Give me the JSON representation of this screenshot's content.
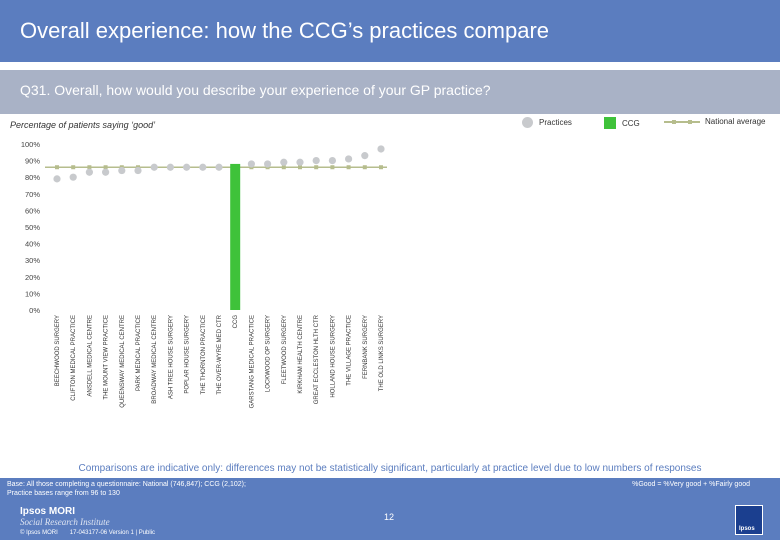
{
  "header": {
    "title": "Overall experience: how the CCG’s practices compare"
  },
  "question": {
    "text": "Q31. Overall, how would you describe your experience of your GP practice?"
  },
  "chart_subtitle": "Percentage of patients saying ‘good’",
  "legend": {
    "practices": "Practices",
    "ccg": "CCG",
    "national": "National average"
  },
  "colors": {
    "header": "#5b7dbf",
    "practice_dot": "#c8cacd",
    "ccg_bar": "#3fc23a",
    "national_line": "#b6bd8d"
  },
  "chart_data": {
    "type": "scatter",
    "title": "",
    "ylabel": "Percentage of patients saying ‘good’",
    "ylim": [
      0,
      100
    ],
    "yticks": [
      "0%",
      "10%",
      "20%",
      "30%",
      "40%",
      "50%",
      "60%",
      "70%",
      "80%",
      "90%",
      "100%"
    ],
    "categories": [
      "BEECHWOOD SURGERY",
      "CLIFTON MEDICAL PRACTICE",
      "ANSDELL MEDICAL CENTRE",
      "THE MOUNT VIEW PRACTICE",
      "QUEENSWAY MEDICAL CENTRE",
      "PARK MEDICAL PRACTICE",
      "BROADWAY MEDICAL CENTRE",
      "ASH TREE HOUSE SURGERY",
      "POPLAR HOUSE SURGERY",
      "THE THORNTON PRACTICE",
      "THE OVER-WYRE MED CTR",
      "CCG",
      "GARSTANG MEDICAL PRACTICE",
      "LOCKWOOD OP SURGERY",
      "FLEETWOOD SURGERY",
      "KIRKHAM HEALTH CENTRE",
      "GREAT ECCLESTON HLTH CTR",
      "HOLLAND HOUSE SURGERY",
      "THE VILLAGE PRACTICE",
      "FERNBANK SURGERY",
      "THE OLD LINKS SURGERY"
    ],
    "values": [
      79,
      80,
      83,
      83,
      84,
      84,
      86,
      86,
      86,
      86,
      86,
      88,
      88,
      88,
      89,
      89,
      90,
      90,
      91,
      93,
      97
    ],
    "highlight": "CCG",
    "national_average": 86
  },
  "notice": "Comparisons are indicative only: differences may not be statistically significant, particularly at practice level due to low numbers of responses",
  "base": {
    "line1": "Base: All those completing a questionnaire: National (746,847); CCG (2,102);",
    "line2": "Practice bases range from 96 to 130",
    "definition": "%Good = %Very good + %Fairly good"
  },
  "footer": {
    "logo_line1": "Ipsos MORI",
    "logo_line2": "Social Research Institute",
    "copyright": "© Ipsos MORI",
    "version": "17-043177-06 Version 1 | Public",
    "page": "12",
    "badge_text": "Ipsos"
  }
}
